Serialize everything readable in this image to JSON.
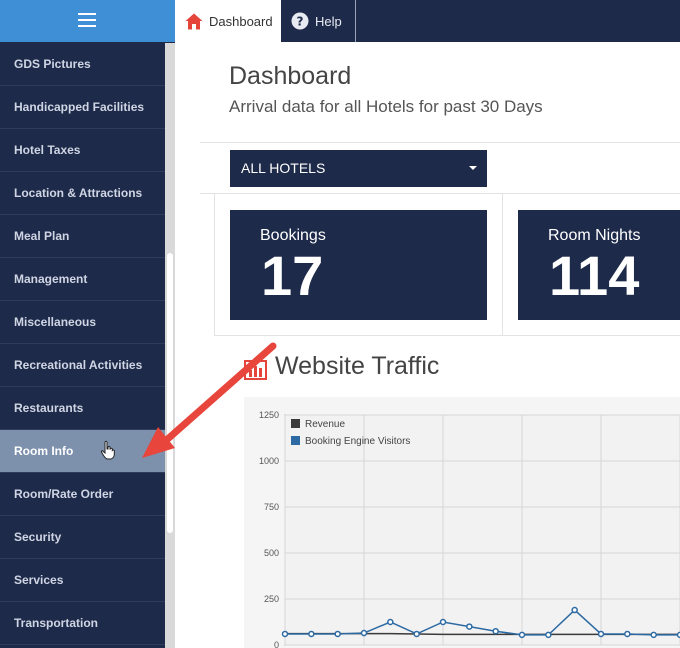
{
  "sidebar": {
    "items": [
      {
        "label": "GDS Pictures"
      },
      {
        "label": "Handicapped Facilities"
      },
      {
        "label": "Hotel Taxes"
      },
      {
        "label": "Location & Attractions"
      },
      {
        "label": "Meal Plan"
      },
      {
        "label": "Management"
      },
      {
        "label": "Miscellaneous"
      },
      {
        "label": "Recreational Activities"
      },
      {
        "label": "Restaurants"
      },
      {
        "label": "Room Info"
      },
      {
        "label": "Room/Rate Order"
      },
      {
        "label": "Security"
      },
      {
        "label": "Services"
      },
      {
        "label": "Transportation"
      }
    ],
    "active_item": "Room Info"
  },
  "topnav": {
    "tabs": [
      {
        "label": "Dashboard",
        "icon": "home-icon"
      },
      {
        "label": "Help",
        "icon": "help-icon"
      }
    ]
  },
  "page": {
    "title": "Dashboard",
    "subtitle": "Arrival data for all Hotels for past 30 Days"
  },
  "hotel_select": {
    "value": "ALL HOTELS"
  },
  "stats": {
    "bookings": {
      "label": "Bookings",
      "value": "17"
    },
    "room_nights": {
      "label": "Room Nights",
      "value": "114"
    }
  },
  "section": {
    "title": "Website Traffic"
  },
  "colors": {
    "navy": "#1e2a4a",
    "accent_blue": "#3f8fd6",
    "active_item": "#7d91ad",
    "arrow": "#e8453c",
    "series_revenue": "#3a3a3a",
    "series_visitors": "#2d6aa3"
  },
  "chart_data": {
    "type": "line",
    "title": "Website Traffic",
    "ylim": [
      0,
      1250
    ],
    "y_ticks": [
      "0",
      "250",
      "500",
      "750",
      "1000",
      "1250"
    ],
    "legend": [
      "Revenue",
      "Booking Engine Visitors"
    ],
    "series": [
      {
        "name": "Revenue",
        "values": [
          62,
          62,
          62,
          62,
          62,
          60,
          58,
          58,
          58,
          58,
          58,
          58,
          58,
          58,
          58,
          58
        ]
      },
      {
        "name": "Booking Engine Visitors",
        "values": [
          60,
          60,
          60,
          65,
          125,
          60,
          125,
          100,
          75,
          55,
          55,
          190,
          60,
          60,
          55,
          55
        ]
      }
    ]
  }
}
